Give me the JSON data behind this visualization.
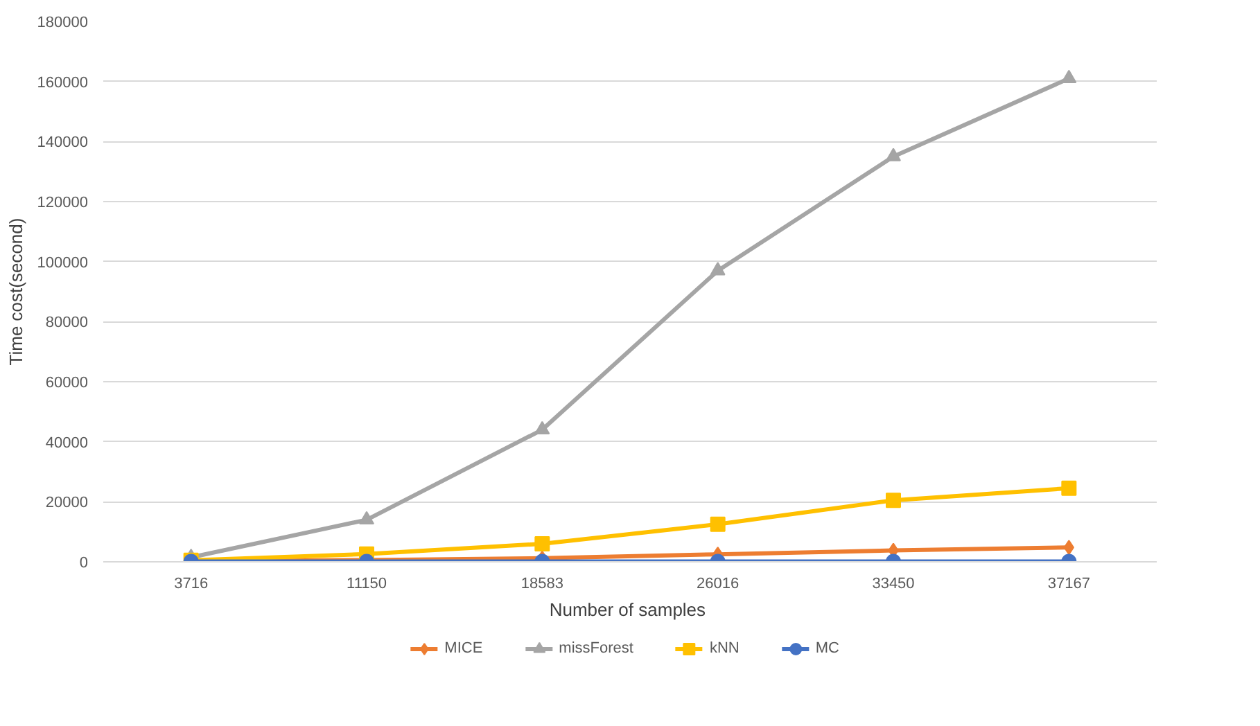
{
  "chart_data": {
    "type": "line",
    "xlabel": "Number  of samples",
    "ylabel": "Time cost(second)",
    "categories": [
      "3716",
      "11150",
      "18583",
      "26016",
      "33450",
      "37167"
    ],
    "series": [
      {
        "name": "MICE",
        "color": "#ed7d31",
        "marker": "diamond",
        "values": [
          200,
          600,
          1200,
          2500,
          3800,
          4800
        ]
      },
      {
        "name": "missForest",
        "color": "#a5a5a5",
        "marker": "triangle",
        "values": [
          1500,
          14000,
          44000,
          97000,
          135000,
          161000
        ]
      },
      {
        "name": "kNN",
        "color": "#ffc000",
        "marker": "square",
        "values": [
          500,
          2600,
          6000,
          12500,
          20500,
          24500
        ]
      },
      {
        "name": "MC",
        "color": "#4472c4",
        "marker": "circle",
        "values": [
          100,
          100,
          100,
          100,
          100,
          100
        ]
      }
    ],
    "ylim": [
      0,
      180000
    ],
    "yticks": [
      0,
      20000,
      40000,
      60000,
      80000,
      100000,
      120000,
      140000,
      160000,
      180000
    ],
    "grid": "y",
    "legend": "bottom"
  }
}
